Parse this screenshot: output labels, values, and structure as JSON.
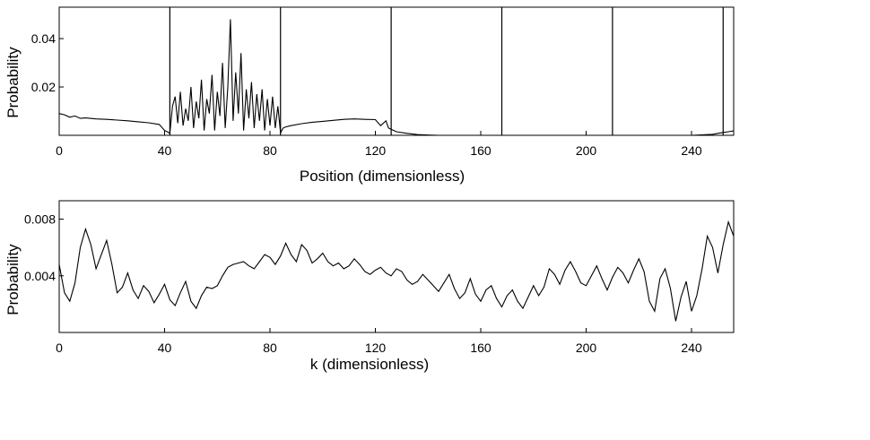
{
  "chart_data": [
    {
      "type": "line",
      "xlabel": "Position (dimensionless)",
      "ylabel": "Probability",
      "xlim": [
        0,
        256
      ],
      "ylim": [
        0,
        0.053
      ],
      "xticks": [
        0,
        40,
        80,
        120,
        160,
        200,
        240
      ],
      "yticks": [
        0.02,
        0.04
      ],
      "xtick_labels": [
        "0",
        "40",
        "80",
        "120",
        "160",
        "200",
        "240"
      ],
      "ytick_labels": [
        "0.02",
        "0.04"
      ],
      "vertical_lines": [
        42,
        84,
        126,
        168,
        210,
        252
      ],
      "series": [
        {
          "x": [
            0,
            2,
            4,
            6,
            8,
            10,
            14,
            18,
            22,
            26,
            30,
            34,
            38,
            40,
            41,
            42,
            43,
            44,
            45,
            46,
            47,
            48,
            49,
            50,
            51,
            52,
            53,
            54,
            55,
            56,
            57,
            58,
            59,
            60,
            61,
            62,
            63,
            64,
            65,
            66,
            67,
            68,
            69,
            70,
            71,
            72,
            73,
            74,
            75,
            76,
            77,
            78,
            79,
            80,
            81,
            82,
            83,
            84,
            85,
            86,
            88,
            92,
            96,
            100,
            104,
            108,
            112,
            116,
            120,
            122,
            124,
            125,
            126,
            128,
            132,
            136,
            140,
            144,
            150,
            156,
            162,
            168,
            180,
            200,
            220,
            240,
            248,
            250,
            252,
            254,
            256
          ],
          "y": [
            0.009,
            0.0085,
            0.0075,
            0.008,
            0.007,
            0.0072,
            0.0068,
            0.0066,
            0.0063,
            0.006,
            0.0056,
            0.0052,
            0.0045,
            0.002,
            0.0015,
            0.0008,
            0.012,
            0.016,
            0.005,
            0.018,
            0.004,
            0.011,
            0.006,
            0.02,
            0.003,
            0.014,
            0.007,
            0.023,
            0.002,
            0.015,
            0.009,
            0.025,
            0.002,
            0.018,
            0.008,
            0.03,
            0.003,
            0.02,
            0.048,
            0.006,
            0.026,
            0.009,
            0.034,
            0.002,
            0.019,
            0.007,
            0.022,
            0.003,
            0.017,
            0.006,
            0.019,
            0.002,
            0.015,
            0.004,
            0.016,
            0.003,
            0.012,
            0.001,
            0.003,
            0.0035,
            0.004,
            0.0048,
            0.0054,
            0.0058,
            0.0062,
            0.0066,
            0.0068,
            0.0066,
            0.0065,
            0.004,
            0.006,
            0.003,
            0.0025,
            0.0015,
            0.0008,
            0.0003,
            0.0001,
            0.0,
            0.0,
            0.0,
            0.0,
            0.0,
            0.0,
            0.0,
            0.0,
            0.0,
            0.0004,
            0.0008,
            0.0012,
            0.0015,
            0.0018
          ]
        }
      ]
    },
    {
      "type": "line",
      "xlabel": "k (dimensionless)",
      "ylabel": "Probability",
      "xlim": [
        0,
        256
      ],
      "ylim": [
        0,
        0.0093
      ],
      "xticks": [
        0,
        40,
        80,
        120,
        160,
        200,
        240
      ],
      "yticks": [
        0.004,
        0.008
      ],
      "xtick_labels": [
        "0",
        "40",
        "80",
        "120",
        "160",
        "200",
        "240"
      ],
      "ytick_labels": [
        "0.004",
        "0.008"
      ],
      "series": [
        {
          "x": [
            0,
            2,
            4,
            6,
            8,
            10,
            12,
            14,
            16,
            18,
            20,
            22,
            24,
            26,
            28,
            30,
            32,
            34,
            36,
            38,
            40,
            42,
            44,
            46,
            48,
            50,
            52,
            54,
            56,
            58,
            60,
            62,
            64,
            66,
            68,
            70,
            72,
            74,
            76,
            78,
            80,
            82,
            84,
            86,
            88,
            90,
            92,
            94,
            96,
            98,
            100,
            102,
            104,
            106,
            108,
            110,
            112,
            114,
            116,
            118,
            120,
            122,
            124,
            126,
            128,
            130,
            132,
            134,
            136,
            138,
            140,
            142,
            144,
            146,
            148,
            150,
            152,
            154,
            156,
            158,
            160,
            162,
            164,
            166,
            168,
            170,
            172,
            174,
            176,
            178,
            180,
            182,
            184,
            186,
            188,
            190,
            192,
            194,
            196,
            198,
            200,
            202,
            204,
            206,
            208,
            210,
            212,
            214,
            216,
            218,
            220,
            222,
            224,
            226,
            228,
            230,
            232,
            234,
            236,
            238,
            240,
            242,
            244,
            246,
            248,
            250,
            252,
            254,
            256
          ],
          "y": [
            0.0048,
            0.0028,
            0.0022,
            0.0035,
            0.006,
            0.0073,
            0.0062,
            0.0045,
            0.0055,
            0.0065,
            0.0048,
            0.0028,
            0.0032,
            0.0042,
            0.003,
            0.0024,
            0.0033,
            0.0029,
            0.0021,
            0.0027,
            0.0034,
            0.0023,
            0.0019,
            0.0028,
            0.0036,
            0.0022,
            0.0017,
            0.0026,
            0.0032,
            0.0031,
            0.0033,
            0.004,
            0.0046,
            0.0048,
            0.0049,
            0.005,
            0.0047,
            0.0045,
            0.005,
            0.0055,
            0.0053,
            0.0048,
            0.0054,
            0.0063,
            0.0055,
            0.005,
            0.0062,
            0.0058,
            0.0049,
            0.0052,
            0.0056,
            0.005,
            0.0047,
            0.0049,
            0.0045,
            0.0047,
            0.0052,
            0.0048,
            0.0043,
            0.0041,
            0.0044,
            0.0046,
            0.0042,
            0.004,
            0.0045,
            0.0043,
            0.0037,
            0.0034,
            0.0036,
            0.0041,
            0.0037,
            0.0033,
            0.0029,
            0.0035,
            0.0041,
            0.0031,
            0.0024,
            0.0028,
            0.0038,
            0.0027,
            0.0022,
            0.003,
            0.0033,
            0.0024,
            0.0018,
            0.0026,
            0.003,
            0.0022,
            0.0017,
            0.0025,
            0.0033,
            0.0026,
            0.0032,
            0.0045,
            0.0041,
            0.0034,
            0.0044,
            0.005,
            0.0043,
            0.0035,
            0.0033,
            0.004,
            0.0047,
            0.0038,
            0.003,
            0.0039,
            0.0046,
            0.0042,
            0.0035,
            0.0044,
            0.0052,
            0.0043,
            0.0022,
            0.0015,
            0.0038,
            0.0045,
            0.0031,
            0.0008,
            0.0025,
            0.0036,
            0.0015,
            0.0026,
            0.0045,
            0.0068,
            0.006,
            0.0042,
            0.0062,
            0.0078,
            0.0068
          ]
        }
      ]
    }
  ]
}
